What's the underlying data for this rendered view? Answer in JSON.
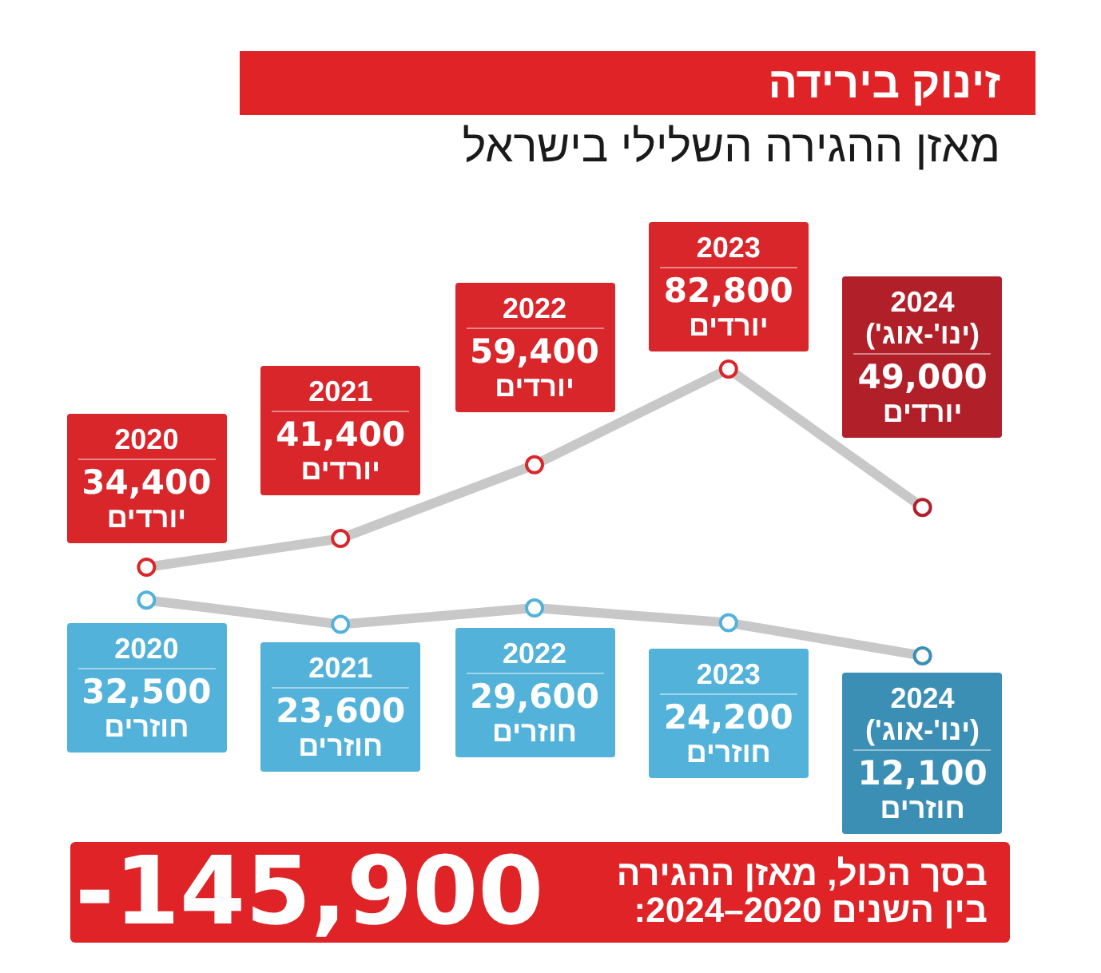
{
  "chart_data": [
    {
      "type": "line",
      "title": "זינוק בירידה",
      "subtitle": "מאזן ההגירה השלילי בישראל",
      "categories": [
        "2020",
        "2021",
        "2022",
        "2023",
        "2024 (ינו'-אוג')"
      ],
      "series": [
        {
          "name": "יורדים",
          "color": "#c8c8c8",
          "colors": [
            "#d9262b",
            "#d9262b",
            "#d9262b",
            "#d9262b",
            "#b11f29"
          ],
          "values": [
            34400,
            41400,
            59400,
            82800,
            49000
          ],
          "value_labels": [
            "34,400",
            "41,400",
            "59,400",
            "82,800",
            "49,000"
          ]
        }
      ],
      "tick_labels": false,
      "marker": "circle"
    },
    {
      "type": "line",
      "categories": [
        "2020",
        "2021",
        "2022",
        "2023",
        "2024 (ינו'-אוג')"
      ],
      "series": [
        {
          "name": "חוזרים",
          "color": "#c8c8c8",
          "colors": [
            "#53b2d9",
            "#53b2d9",
            "#53b2d9",
            "#53b2d9",
            "#3b8fb5"
          ],
          "values": [
            32500,
            23600,
            29600,
            24200,
            12100
          ],
          "value_labels": [
            "32,500",
            "23,600",
            "29,600",
            "24,200",
            "12,100"
          ]
        }
      ],
      "tick_labels": false,
      "marker": "circle",
      "annotations": [
        "בסך הכול, מאזן ההגירה בין השנים 2020–2024:",
        "-145,900"
      ]
    }
  ]
}
